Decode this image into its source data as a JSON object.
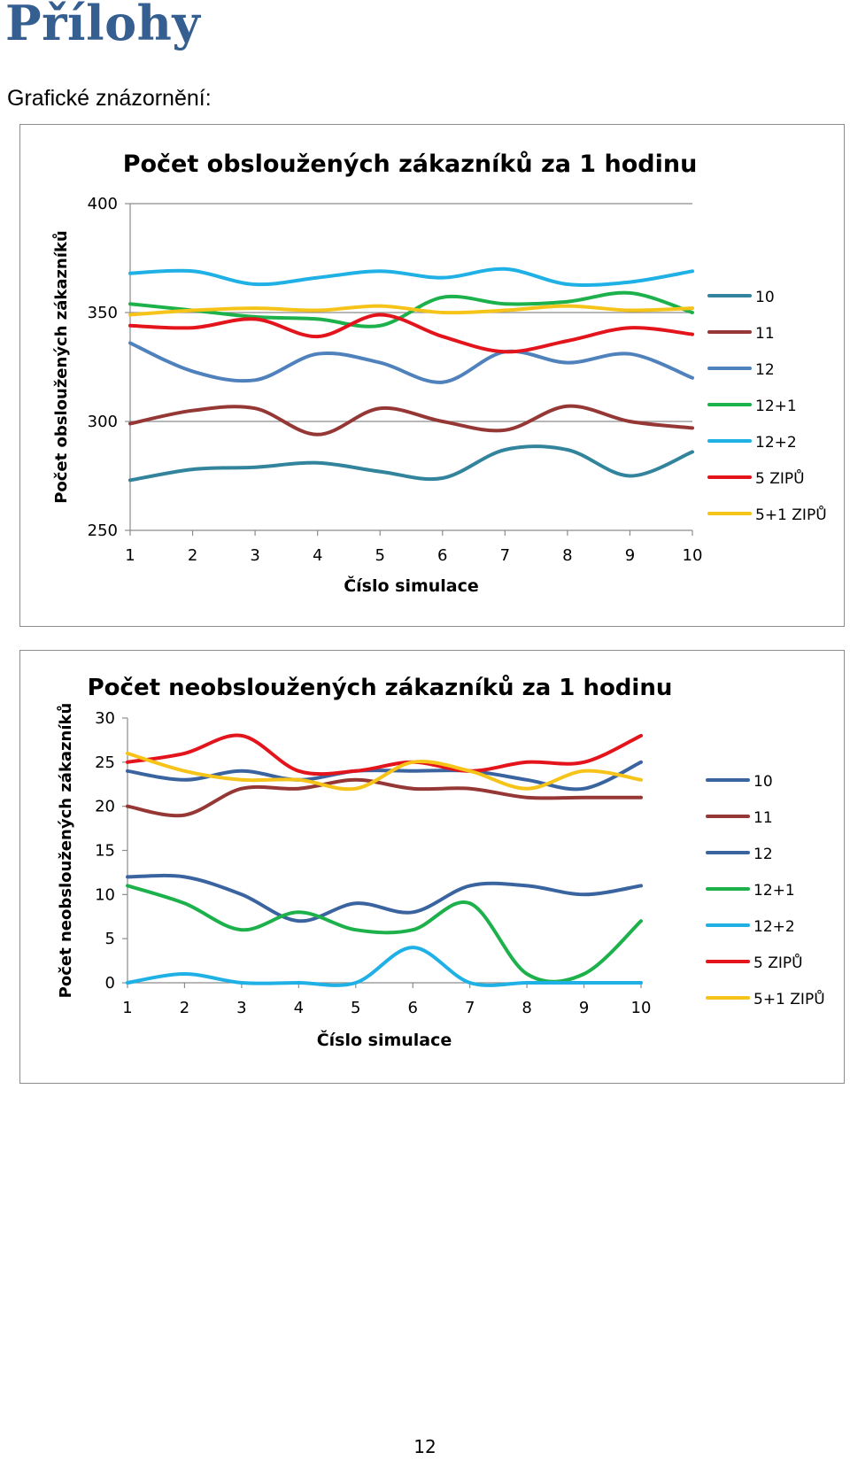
{
  "page": {
    "heading": "Přílohy",
    "section_label": "Grafické znázornění:",
    "page_number": "12"
  },
  "chart_data": [
    {
      "type": "line",
      "title": "Počet obsloužených zákazníků za 1 hodinu",
      "xlabel": "Číslo simulace",
      "ylabel": "Počet obsloužených zákazníků",
      "x": [
        1,
        2,
        3,
        4,
        5,
        6,
        7,
        8,
        9,
        10
      ],
      "ylim": [
        250,
        400
      ],
      "yticks": [
        250,
        300,
        350,
        400
      ],
      "grid": true,
      "legend_position": "right",
      "series": [
        {
          "name": "10",
          "color": "#31849b",
          "values": [
            273,
            278,
            279,
            281,
            277,
            274,
            287,
            287,
            275,
            286
          ]
        },
        {
          "name": "11",
          "color": "#953735",
          "values": [
            299,
            305,
            306,
            294,
            306,
            300,
            296,
            307,
            300,
            297
          ]
        },
        {
          "name": "12",
          "color": "#4f81bd",
          "values": [
            336,
            323,
            319,
            331,
            327,
            318,
            332,
            327,
            331,
            320
          ]
        },
        {
          "name": "12+1",
          "color": "#1db14b",
          "values": [
            354,
            351,
            348,
            347,
            344,
            357,
            354,
            355,
            359,
            350
          ]
        },
        {
          "name": "12+2",
          "color": "#1fb1e6",
          "values": [
            368,
            369,
            363,
            366,
            369,
            366,
            370,
            363,
            364,
            369
          ]
        },
        {
          "name": "5 ZIPŮ",
          "color": "#e3141b",
          "values": [
            344,
            343,
            347,
            339,
            349,
            339,
            332,
            337,
            343,
            340
          ]
        },
        {
          "name": "5+1 ZIPŮ",
          "color": "#f6c319",
          "values": [
            349,
            351,
            352,
            351,
            353,
            350,
            351,
            353,
            351,
            352
          ]
        }
      ]
    },
    {
      "type": "line",
      "title": "Počet neobsloužených zákazníků za 1 hodinu",
      "xlabel": "Číslo simulace",
      "ylabel": "Počet neobsloužených zákazníků",
      "x": [
        1,
        2,
        3,
        4,
        5,
        6,
        7,
        8,
        9,
        10
      ],
      "ylim": [
        0,
        30
      ],
      "yticks": [
        0,
        5,
        10,
        15,
        20,
        25,
        30
      ],
      "grid": false,
      "legend_position": "right",
      "series": [
        {
          "name": "10",
          "color": "#3a64a0",
          "values": [
            24,
            23,
            24,
            23,
            24,
            24,
            24,
            23,
            22,
            25
          ]
        },
        {
          "name": "11",
          "color": "#953735",
          "values": [
            20,
            19,
            22,
            22,
            23,
            22,
            22,
            21,
            21,
            21
          ]
        },
        {
          "name": "12",
          "color": "#3a64a0",
          "values": [
            12,
            12,
            10,
            7,
            9,
            8,
            11,
            11,
            10,
            11
          ]
        },
        {
          "name": "12+1",
          "color": "#1db14b",
          "values": [
            11,
            9,
            6,
            8,
            6,
            6,
            9,
            1,
            1,
            7
          ]
        },
        {
          "name": "12+2",
          "color": "#1fb1e6",
          "values": [
            0,
            1,
            0,
            0,
            0,
            4,
            0,
            0,
            0,
            0
          ]
        },
        {
          "name": "5 ZIPŮ",
          "color": "#e3141b",
          "values": [
            25,
            26,
            28,
            24,
            24,
            25,
            24,
            25,
            25,
            28
          ]
        },
        {
          "name": "5+1 ZIPŮ",
          "color": "#f6c319",
          "values": [
            26,
            24,
            23,
            23,
            22,
            25,
            24,
            22,
            24,
            23
          ]
        }
      ]
    }
  ]
}
